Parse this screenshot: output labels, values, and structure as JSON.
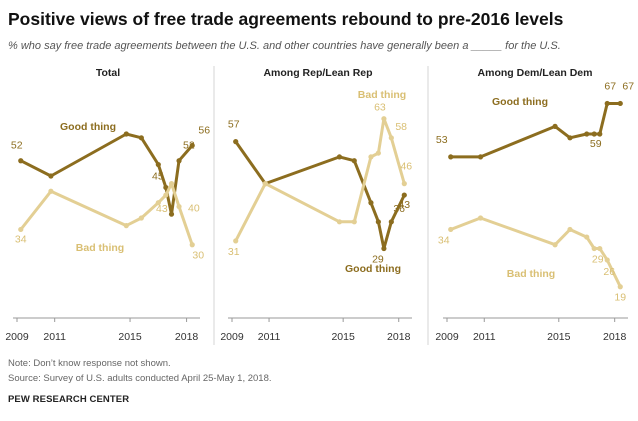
{
  "title": "Positive views of free trade agreements  rebound to pre-2016 levels",
  "subtitle": "% who say free trade agreements between the U.S. and other countries have generally been a _____ for the U.S.",
  "note": "Note: Don’t know response not shown.",
  "source": "Source: Survey of U.S. adults conducted April 25-May 1, 2018.",
  "org": "PEW RESEARCH CENTER",
  "colors": {
    "good": "#8c6d1f",
    "bad": "#e3cf94"
  },
  "chart_data": [
    {
      "type": "line",
      "title": "Total",
      "x_tick_labels": [
        "2009",
        "2011",
        "2015",
        "2018"
      ],
      "series": [
        {
          "name": "Good thing",
          "x": [
            2009.2,
            2010.8,
            2014.8,
            2015.6,
            2016.5,
            2016.9,
            2017.2,
            2017.6,
            2018.3
          ],
          "values": [
            52,
            48,
            59,
            58,
            51,
            45,
            38,
            52,
            56
          ]
        },
        {
          "name": "Bad thing",
          "x": [
            2009.2,
            2010.8,
            2014.8,
            2015.6,
            2016.5,
            2016.9,
            2017.2,
            2017.6,
            2018.3
          ],
          "values": [
            34,
            44,
            35,
            37,
            41,
            43,
            46,
            40,
            30
          ]
        }
      ],
      "labels": [
        {
          "text": "52",
          "series": "Good thing",
          "i": 0
        },
        {
          "text": "45",
          "series": "Good thing",
          "i": 5
        },
        {
          "text": "52",
          "series": "Good thing",
          "i": 7
        },
        {
          "text": "56",
          "series": "Good thing",
          "i": 8
        },
        {
          "text": "34",
          "series": "Bad thing",
          "i": 0
        },
        {
          "text": "43",
          "series": "Bad thing",
          "i": 5
        },
        {
          "text": "40",
          "series": "Bad thing",
          "i": 7
        },
        {
          "text": "30",
          "series": "Bad thing",
          "i": 8
        }
      ],
      "series_labels": [
        "Good thing",
        "Bad thing"
      ]
    },
    {
      "type": "line",
      "title": "Among Rep/Lean Rep",
      "x_tick_labels": [
        "2009",
        "2011",
        "2015",
        "2018"
      ],
      "series": [
        {
          "name": "Good thing",
          "x": [
            2009.2,
            2010.8,
            2014.8,
            2015.6,
            2016.5,
            2016.9,
            2017.2,
            2017.6,
            2018.3
          ],
          "values": [
            57,
            46,
            53,
            52,
            41,
            36,
            29,
            36,
            43
          ]
        },
        {
          "name": "Bad thing",
          "x": [
            2009.2,
            2010.8,
            2014.8,
            2015.6,
            2016.5,
            2016.9,
            2017.2,
            2017.6,
            2018.3
          ],
          "values": [
            31,
            46,
            36,
            36,
            53,
            54,
            63,
            58,
            46
          ]
        }
      ],
      "labels": [
        {
          "text": "57",
          "series": "Good thing",
          "i": 0
        },
        {
          "text": "29",
          "series": "Good thing",
          "i": 6
        },
        {
          "text": "36",
          "series": "Good thing",
          "i": 7
        },
        {
          "text": "43",
          "series": "Good thing",
          "i": 8
        },
        {
          "text": "31",
          "series": "Bad thing",
          "i": 0
        },
        {
          "text": "63",
          "series": "Bad thing",
          "i": 6
        },
        {
          "text": "58",
          "series": "Bad thing",
          "i": 7
        },
        {
          "text": "46",
          "series": "Bad thing",
          "i": 8
        }
      ],
      "series_labels": [
        "Good thing",
        "Bad thing"
      ]
    },
    {
      "type": "line",
      "title": "Among Dem/Lean Dem",
      "x_tick_labels": [
        "2009",
        "2011",
        "2015",
        "2018"
      ],
      "series": [
        {
          "name": "Good thing",
          "x": [
            2009.2,
            2010.8,
            2014.8,
            2015.6,
            2016.5,
            2016.9,
            2017.2,
            2017.6,
            2018.3
          ],
          "values": [
            53,
            53,
            61,
            58,
            59,
            59,
            59,
            67,
            67
          ]
        },
        {
          "name": "Bad thing",
          "x": [
            2009.2,
            2010.8,
            2014.8,
            2015.6,
            2016.5,
            2016.9,
            2017.2,
            2017.6,
            2018.3
          ],
          "values": [
            34,
            37,
            30,
            34,
            32,
            29,
            29,
            26,
            19
          ]
        }
      ],
      "labels": [
        {
          "text": "53",
          "series": "Good thing",
          "i": 0
        },
        {
          "text": "59",
          "series": "Good thing",
          "i": 6
        },
        {
          "text": "67",
          "series": "Good thing",
          "i": 7
        },
        {
          "text": "67",
          "series": "Good thing",
          "i": 8
        },
        {
          "text": "34",
          "series": "Bad thing",
          "i": 0
        },
        {
          "text": "29",
          "series": "Bad thing",
          "i": 6
        },
        {
          "text": "26",
          "series": "Bad thing",
          "i": 7
        },
        {
          "text": "19",
          "series": "Bad thing",
          "i": 8
        }
      ],
      "series_labels": [
        "Good thing",
        "Bad thing"
      ]
    }
  ]
}
